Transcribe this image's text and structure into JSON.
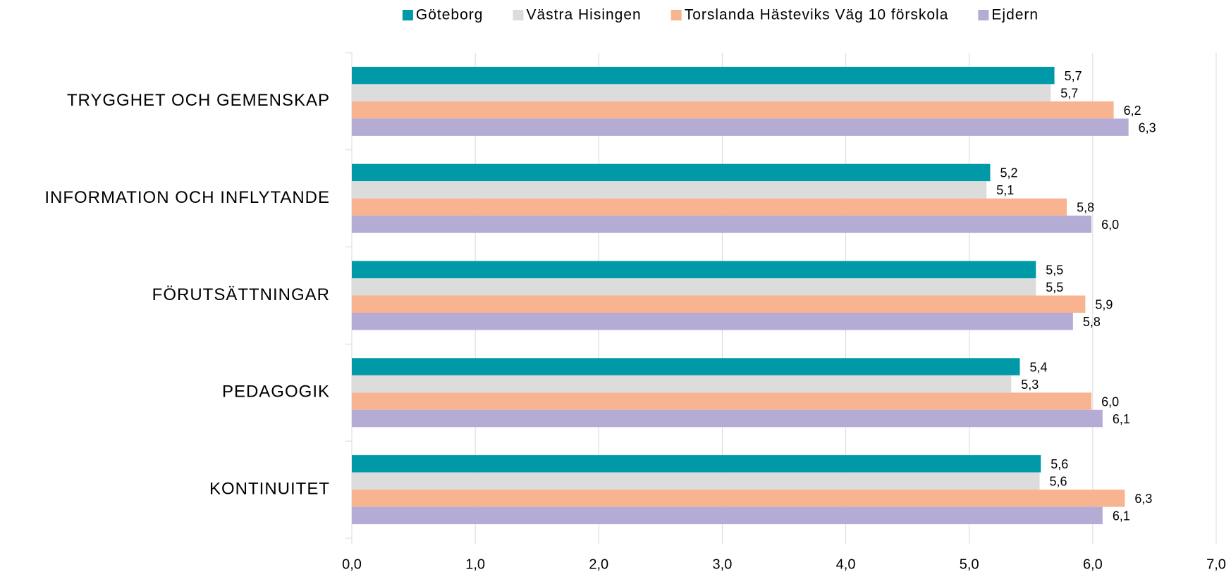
{
  "chart_data": {
    "type": "bar",
    "orientation": "horizontal",
    "categories": [
      "TRYGGHET OCH GEMENSKAP",
      "INFORMATION OCH INFLYTANDE",
      "FÖRUTSÄTTNINGAR",
      "PEDAGOGIK",
      "KONTINUITET"
    ],
    "series": [
      {
        "name": "Göteborg",
        "color": "#0099a8",
        "values": [
          5.69,
          5.17,
          5.54,
          5.41,
          5.58
        ],
        "value_labels": [
          "5,7",
          "5,2",
          "5,5",
          "5,4",
          "5,6"
        ]
      },
      {
        "name": "Västra Hisingen",
        "color": "#dcdcdc",
        "values": [
          5.66,
          5.14,
          5.54,
          5.34,
          5.57
        ],
        "value_labels": [
          "5,7",
          "5,1",
          "5,5",
          "5,3",
          "5,6"
        ]
      },
      {
        "name": "Torslanda Hästeviks Väg 10 förskola",
        "color": "#f8b490",
        "values": [
          6.17,
          5.79,
          5.94,
          5.99,
          6.26
        ],
        "value_labels": [
          "6,2",
          "5,8",
          "5,9",
          "6,0",
          "6,3"
        ]
      },
      {
        "name": "Ejdern",
        "color": "#b4acd4",
        "values": [
          6.29,
          5.99,
          5.84,
          6.08,
          6.08
        ],
        "value_labels": [
          "6,3",
          "6,0",
          "5,8",
          "6,1",
          "6,1"
        ]
      }
    ],
    "xlim": [
      0,
      7
    ],
    "xticks": [
      {
        "value": 0,
        "label": "0,0"
      },
      {
        "value": 1,
        "label": "1,0"
      },
      {
        "value": 2,
        "label": "2,0"
      },
      {
        "value": 3,
        "label": "3,0"
      },
      {
        "value": 4,
        "label": "4,0"
      },
      {
        "value": 5,
        "label": "5,0"
      },
      {
        "value": 6,
        "label": "6,0"
      },
      {
        "value": 7,
        "label": "7,0"
      }
    ],
    "grid": true,
    "legend": "top"
  }
}
